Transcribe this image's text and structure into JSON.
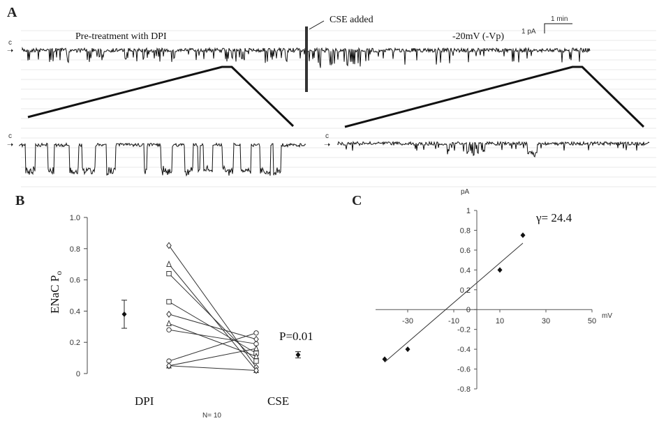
{
  "panels": {
    "a": {
      "letter": "A",
      "cse_label": "CSE added",
      "pretreat_label": "Pre-treatment with DPI",
      "voltage_label": "-20mV (-Vp)",
      "scale_time": "1 min",
      "scale_current": "1 pA",
      "closed_marker": "c"
    },
    "b": {
      "letter": "B",
      "ylabel": "ENaC P",
      "ylabel_sub": "o",
      "pvalue": "P=0.01",
      "n_label": "N= 10"
    },
    "c": {
      "letter": "C",
      "ylabel": "pA",
      "xlabel": "mV",
      "gamma_label": "γ= 24.4"
    }
  },
  "chart_data": [
    {
      "type": "scatter",
      "panel": "B",
      "title": "",
      "xlabel": "",
      "ylabel": "ENaC Po",
      "categories": [
        "DPI",
        "CSE"
      ],
      "ylim": [
        0,
        1.0
      ],
      "yticks": [
        "1.0",
        "0.8",
        "0.6",
        "0.4",
        "0.2",
        "0"
      ],
      "paired": [
        {
          "marker": "diamond",
          "dpi": 0.82,
          "cse": 0.04
        },
        {
          "marker": "triangle",
          "dpi": 0.7,
          "cse": 0.02
        },
        {
          "marker": "square",
          "dpi": 0.64,
          "cse": 0.08
        },
        {
          "marker": "square",
          "dpi": 0.46,
          "cse": 0.13
        },
        {
          "marker": "diamond",
          "dpi": 0.38,
          "cse": 0.22
        },
        {
          "marker": "triangle",
          "dpi": 0.32,
          "cse": 0.11
        },
        {
          "marker": "circle",
          "dpi": 0.28,
          "cse": 0.19
        },
        {
          "marker": "circle",
          "dpi": 0.08,
          "cse": 0.26
        },
        {
          "marker": "triangle",
          "dpi": 0.05,
          "cse": 0.16
        },
        {
          "marker": "diamond",
          "dpi": 0.05,
          "cse": 0.02
        }
      ],
      "means": [
        {
          "category": "DPI",
          "mean": 0.38,
          "err": 0.09
        },
        {
          "category": "CSE",
          "mean": 0.12,
          "err": 0.02
        }
      ],
      "grid": false
    },
    {
      "type": "scatter",
      "panel": "C",
      "title": "",
      "xlabel": "mV",
      "ylabel": "pA",
      "xlim": [
        -50,
        50
      ],
      "ylim": [
        -0.8,
        1
      ],
      "xticks": [
        "-30",
        "-10",
        "10",
        "30",
        "50"
      ],
      "yticks": [
        "1",
        "0.8",
        "0.6",
        "0.4",
        "0.2",
        "0",
        "-0.2",
        "-0.4",
        "-0.6",
        "-0.8"
      ],
      "points": [
        {
          "x": -40,
          "y": -0.5
        },
        {
          "x": -30,
          "y": -0.4
        },
        {
          "x": 10,
          "y": 0.4
        },
        {
          "x": 20,
          "y": 0.75
        }
      ],
      "fit_line": {
        "x": [
          -40,
          20
        ],
        "y": [
          -0.53,
          0.67
        ]
      },
      "grid": false
    }
  ],
  "colors": {
    "trace": "#111111",
    "axis": "#444444",
    "gridline": "#e9e9e9"
  }
}
